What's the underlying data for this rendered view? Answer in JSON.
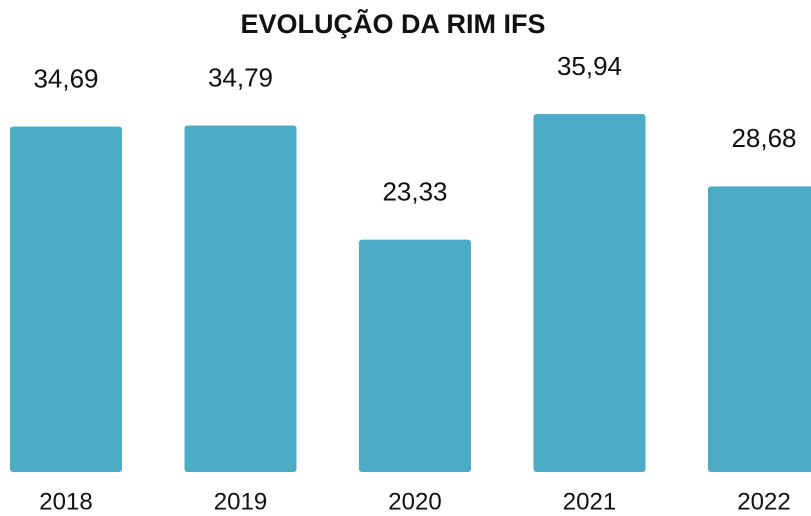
{
  "chart_data": {
    "type": "bar",
    "title": "EVOLUÇÃO DA RIM IFS",
    "categories": [
      "2018",
      "2019",
      "2020",
      "2021",
      "2022"
    ],
    "values": [
      34.69,
      34.79,
      23.33,
      35.94,
      28.68
    ],
    "value_labels": [
      "34,69",
      "34,79",
      "23,33",
      "35,94",
      "28,68"
    ],
    "color": "#4bacc6"
  }
}
